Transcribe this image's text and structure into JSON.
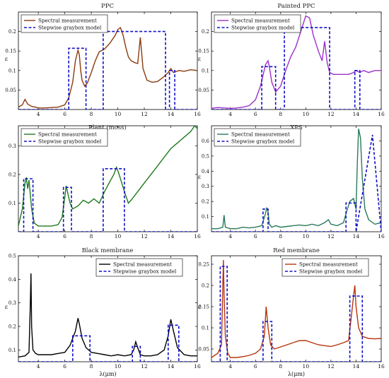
{
  "figure": {
    "line_color_legend": "#000000",
    "model_color": "#1010c8"
  },
  "chart_data": [
    {
      "type": "line",
      "title": "PPC",
      "xlabel": "",
      "ylabel": "ε",
      "xlim": [
        2.5,
        16
      ],
      "ylim": [
        0,
        0.25
      ],
      "xticks": [
        4,
        6,
        8,
        10,
        12,
        14,
        16
      ],
      "yticks": [
        0.05,
        0.1,
        0.15,
        0.2
      ],
      "ytick_labels": [
        "0.05",
        "0.1",
        "0.15",
        "0.2"
      ],
      "legend": "top-left",
      "series": [
        {
          "name": "Spectral measurement",
          "color": "#8b3a0e",
          "x": [
            2.5,
            2.8,
            3.0,
            3.2,
            3.5,
            3.8,
            4.0,
            4.5,
            5.0,
            5.5,
            6.0,
            6.3,
            6.6,
            6.8,
            7.0,
            7.1,
            7.2,
            7.3,
            7.5,
            7.7,
            8.0,
            8.3,
            8.6,
            9.0,
            9.4,
            9.8,
            10.0,
            10.2,
            10.4,
            10.6,
            10.8,
            11.0,
            11.3,
            11.5,
            11.7,
            11.9,
            12.2,
            12.6,
            13.0,
            13.4,
            13.8,
            14.0,
            14.2,
            14.6,
            15.0,
            15.5,
            16.0
          ],
          "y": [
            0.006,
            0.012,
            0.026,
            0.014,
            0.008,
            0.006,
            0.004,
            0.004,
            0.005,
            0.006,
            0.012,
            0.03,
            0.07,
            0.125,
            0.152,
            0.14,
            0.1,
            0.075,
            0.06,
            0.068,
            0.095,
            0.125,
            0.148,
            0.155,
            0.17,
            0.19,
            0.205,
            0.21,
            0.19,
            0.16,
            0.135,
            0.125,
            0.12,
            0.118,
            0.185,
            0.105,
            0.075,
            0.07,
            0.072,
            0.082,
            0.095,
            0.105,
            0.095,
            0.1,
            0.098,
            0.102,
            0.1
          ]
        },
        {
          "name": "Stepwise graybox model",
          "color": "#1010c8",
          "x": [
            2.5,
            6.3,
            6.3,
            7.6,
            7.6,
            8.9,
            8.9,
            13.6,
            13.6,
            13.9,
            13.9,
            14.3,
            14.3,
            16.0
          ],
          "y": [
            0,
            0,
            0.157,
            0.157,
            0,
            0,
            0.2,
            0.2,
            0,
            0,
            0.1,
            0.1,
            0,
            0
          ]
        }
      ]
    },
    {
      "type": "line",
      "title": "Painted PPC",
      "xlabel": "",
      "ylabel": "ε",
      "xlim": [
        2.5,
        16
      ],
      "ylim": [
        0,
        0.25
      ],
      "xticks": [
        4,
        6,
        8,
        10,
        12,
        14,
        16
      ],
      "yticks": [
        0.05,
        0.1,
        0.15,
        0.2
      ],
      "ytick_labels": [
        "0.05",
        "0.1",
        "0.15",
        "0.2"
      ],
      "legend": "top-left",
      "series": [
        {
          "name": "Spectral measurement",
          "color": "#9b30c8",
          "x": [
            2.5,
            3.0,
            3.5,
            4.0,
            4.5,
            5.0,
            5.5,
            6.0,
            6.4,
            6.8,
            7.0,
            7.1,
            7.3,
            7.6,
            8.0,
            8.4,
            8.8,
            9.2,
            9.6,
            10.0,
            10.3,
            10.6,
            11.0,
            11.3,
            11.5,
            11.7,
            11.9,
            12.2,
            12.6,
            13.0,
            13.4,
            13.8,
            14.0,
            14.3,
            14.6,
            15.0,
            15.5,
            16.0
          ],
          "y": [
            0.003,
            0.005,
            0.004,
            0.003,
            0.004,
            0.006,
            0.01,
            0.025,
            0.06,
            0.115,
            0.125,
            0.11,
            0.07,
            0.045,
            0.06,
            0.1,
            0.135,
            0.16,
            0.2,
            0.24,
            0.235,
            0.19,
            0.15,
            0.125,
            0.175,
            0.12,
            0.095,
            0.09,
            0.09,
            0.09,
            0.09,
            0.095,
            0.1,
            0.095,
            0.1,
            0.095,
            0.1,
            0.1
          ]
        },
        {
          "name": "Stepwise graybox model",
          "color": "#1010c8",
          "x": [
            2.5,
            6.5,
            6.5,
            7.6,
            7.6,
            8.3,
            8.3,
            11.9,
            11.9,
            13.9,
            13.9,
            14.3,
            14.3,
            16.0
          ],
          "y": [
            0,
            0,
            0.11,
            0.11,
            0,
            0,
            0.21,
            0.21,
            0,
            0,
            0.1,
            0.1,
            0,
            0
          ]
        }
      ]
    },
    {
      "type": "line",
      "title": "Plant (moss)",
      "xlabel": "",
      "ylabel": "",
      "xlim": [
        2.5,
        16
      ],
      "ylim": [
        0,
        0.37
      ],
      "xticks": [
        4,
        6,
        8,
        10,
        12,
        14,
        16
      ],
      "yticks": [
        0.1,
        0.2,
        0.3
      ],
      "ytick_labels": [
        "0.1",
        "0.2",
        "0.3"
      ],
      "legend": "top-left",
      "series": [
        {
          "name": "Spectral measurement",
          "color": "#1e7a1e",
          "x": [
            2.5,
            2.8,
            3.0,
            3.1,
            3.2,
            3.3,
            3.5,
            3.7,
            4.0,
            4.5,
            5.0,
            5.5,
            5.8,
            6.0,
            6.1,
            6.2,
            6.4,
            6.6,
            7.0,
            7.4,
            7.8,
            8.2,
            8.6,
            9.0,
            9.4,
            9.7,
            9.9,
            10.1,
            10.3,
            10.5,
            10.8,
            11.0,
            11.5,
            12.0,
            12.5,
            13.0,
            13.5,
            14.0,
            14.5,
            15.0,
            15.5,
            15.8,
            16.0
          ],
          "y": [
            0.02,
            0.08,
            0.17,
            0.19,
            0.15,
            0.18,
            0.08,
            0.03,
            0.02,
            0.02,
            0.02,
            0.025,
            0.05,
            0.12,
            0.16,
            0.14,
            0.1,
            0.08,
            0.09,
            0.11,
            0.1,
            0.115,
            0.1,
            0.14,
            0.175,
            0.2,
            0.225,
            0.2,
            0.17,
            0.14,
            0.1,
            0.11,
            0.14,
            0.17,
            0.2,
            0.23,
            0.26,
            0.29,
            0.31,
            0.33,
            0.35,
            0.37,
            0.36
          ]
        },
        {
          "name": "Stepwise graybox model",
          "color": "#1010c8",
          "x": [
            2.5,
            2.9,
            2.9,
            3.6,
            3.6,
            5.9,
            5.9,
            6.5,
            6.5,
            8.9,
            8.9,
            10.5,
            10.5,
            16.0
          ],
          "y": [
            0,
            0,
            0.185,
            0.185,
            0,
            0,
            0.155,
            0.155,
            0,
            0,
            0.22,
            0.22,
            0,
            0
          ]
        }
      ]
    },
    {
      "type": "line",
      "title": "XPS",
      "xlabel": "",
      "ylabel": "ε",
      "xlim": [
        2.5,
        16
      ],
      "ylim": [
        0,
        0.7
      ],
      "xticks": [
        4,
        6,
        8,
        10,
        12,
        14,
        16
      ],
      "yticks": [
        0.1,
        0.2,
        0.3,
        0.4,
        0.5,
        0.6
      ],
      "ytick_labels": [
        "0.1",
        "0.2",
        "0.3",
        "0.4",
        "0.5",
        "0.6"
      ],
      "legend": "top-left",
      "series": [
        {
          "name": "Spectral measurement",
          "color": "#2a7a5a",
          "x": [
            2.5,
            3.0,
            3.4,
            3.5,
            3.6,
            4.0,
            4.5,
            5.0,
            5.5,
            6.0,
            6.5,
            6.8,
            6.9,
            7.0,
            7.1,
            7.3,
            7.6,
            8.0,
            8.5,
            9.0,
            9.5,
            10.0,
            10.5,
            11.0,
            11.5,
            11.8,
            12.0,
            12.5,
            13.0,
            13.2,
            13.5,
            13.8,
            14.0,
            14.1,
            14.2,
            14.35,
            14.5,
            14.7,
            15.0,
            15.5,
            16.0
          ],
          "y": [
            0.02,
            0.02,
            0.03,
            0.11,
            0.03,
            0.02,
            0.02,
            0.03,
            0.025,
            0.03,
            0.04,
            0.12,
            0.16,
            0.13,
            0.05,
            0.03,
            0.04,
            0.03,
            0.035,
            0.04,
            0.045,
            0.04,
            0.05,
            0.04,
            0.06,
            0.08,
            0.05,
            0.04,
            0.06,
            0.12,
            0.2,
            0.22,
            0.15,
            0.45,
            0.68,
            0.62,
            0.35,
            0.15,
            0.08,
            0.05,
            0.06
          ]
        },
        {
          "name": "Stepwise graybox model",
          "color": "#1010c8",
          "x": [
            2.5,
            6.6,
            6.6,
            7.0,
            7.0,
            13.2,
            13.2,
            14.0,
            14.0,
            15.3,
            15.3,
            16.0
          ],
          "y": [
            0,
            0,
            0.15,
            0.15,
            0,
            0,
            0.19,
            0.19,
            0,
            0.64,
            0.64,
            0
          ]
        }
      ]
    },
    {
      "type": "line",
      "title": "Black membrane",
      "xlabel": "λ(μm)",
      "ylabel": "ε",
      "xlim": [
        2.5,
        16
      ],
      "ylim": [
        0.05,
        0.5
      ],
      "xticks": [
        4,
        6,
        8,
        10,
        12,
        14,
        16
      ],
      "yticks": [
        0.1,
        0.2,
        0.3,
        0.4,
        0.5
      ],
      "ytick_labels": [
        "0.1",
        "0.2",
        "0.3",
        "0.4",
        "0.5"
      ],
      "legend": "top-right",
      "series": [
        {
          "name": "Spectral measurement",
          "color": "#000000",
          "x": [
            2.5,
            3.0,
            3.3,
            3.4,
            3.45,
            3.5,
            3.6,
            3.8,
            4.0,
            5.0,
            5.5,
            6.0,
            6.4,
            6.8,
            7.0,
            7.1,
            7.3,
            7.6,
            8.0,
            8.5,
            9.0,
            9.5,
            10.0,
            10.5,
            11.0,
            11.2,
            11.35,
            11.5,
            11.7,
            12.0,
            12.5,
            13.0,
            13.5,
            13.8,
            14.0,
            14.2,
            14.5,
            15.0,
            15.5,
            16.0
          ],
          "y": [
            0.07,
            0.075,
            0.09,
            0.3,
            0.425,
            0.2,
            0.1,
            0.085,
            0.08,
            0.08,
            0.085,
            0.09,
            0.12,
            0.18,
            0.235,
            0.21,
            0.15,
            0.11,
            0.09,
            0.085,
            0.08,
            0.075,
            0.08,
            0.075,
            0.08,
            0.1,
            0.135,
            0.11,
            0.08,
            0.075,
            0.075,
            0.08,
            0.1,
            0.16,
            0.23,
            0.18,
            0.11,
            0.08,
            0.075,
            0.075
          ]
        },
        {
          "name": "Stepwise graybox model",
          "color": "#1010c8",
          "x": [
            2.5,
            6.6,
            6.6,
            7.9,
            7.9,
            11.1,
            11.1,
            11.7,
            11.7,
            13.8,
            13.8,
            14.6,
            14.6,
            16.0
          ],
          "y": [
            0.05,
            0.05,
            0.16,
            0.16,
            0.05,
            0.05,
            0.115,
            0.115,
            0.05,
            0.05,
            0.205,
            0.205,
            0.05,
            0.05
          ]
        }
      ]
    },
    {
      "type": "line",
      "title": "Red membrane",
      "xlabel": "λ(μm)",
      "ylabel": "ε",
      "xlim": [
        2.5,
        16
      ],
      "ylim": [
        0.02,
        0.27
      ],
      "xticks": [
        4,
        6,
        8,
        10,
        12,
        14,
        16
      ],
      "yticks": [
        0.05,
        0.1,
        0.15,
        0.2,
        0.25
      ],
      "ytick_labels": [
        "0.05",
        "0.1",
        "0.15",
        "0.2",
        "0.25"
      ],
      "legend": "top-right",
      "series": [
        {
          "name": "Spectral measurement",
          "color": "#b8340f",
          "x": [
            2.5,
            3.0,
            3.3,
            3.4,
            3.45,
            3.5,
            3.6,
            3.8,
            4.0,
            4.5,
            5.0,
            5.5,
            6.0,
            6.4,
            6.7,
            6.85,
            7.0,
            7.2,
            7.5,
            8.0,
            8.5,
            9.0,
            9.5,
            10.0,
            10.5,
            11.0,
            11.5,
            12.0,
            12.5,
            13.0,
            13.4,
            13.6,
            13.8,
            13.9,
            14.0,
            14.2,
            14.5,
            15.0,
            15.5,
            16.0
          ],
          "y": [
            0.03,
            0.04,
            0.06,
            0.2,
            0.26,
            0.18,
            0.08,
            0.04,
            0.03,
            0.03,
            0.032,
            0.035,
            0.04,
            0.05,
            0.08,
            0.15,
            0.1,
            0.06,
            0.05,
            0.055,
            0.06,
            0.065,
            0.07,
            0.07,
            0.065,
            0.06,
            0.058,
            0.056,
            0.06,
            0.065,
            0.07,
            0.12,
            0.175,
            0.2,
            0.15,
            0.1,
            0.08,
            0.075,
            0.074,
            0.075
          ]
        },
        {
          "name": "Stepwise graybox model",
          "color": "#1010c8",
          "x": [
            2.5,
            3.2,
            3.2,
            3.75,
            3.75,
            6.6,
            6.6,
            7.3,
            7.3,
            13.5,
            13.5,
            14.5,
            14.5,
            16.0
          ],
          "y": [
            0.02,
            0.02,
            0.245,
            0.245,
            0.02,
            0.02,
            0.115,
            0.115,
            0.02,
            0.02,
            0.175,
            0.175,
            0.02,
            0.02
          ]
        }
      ]
    }
  ]
}
